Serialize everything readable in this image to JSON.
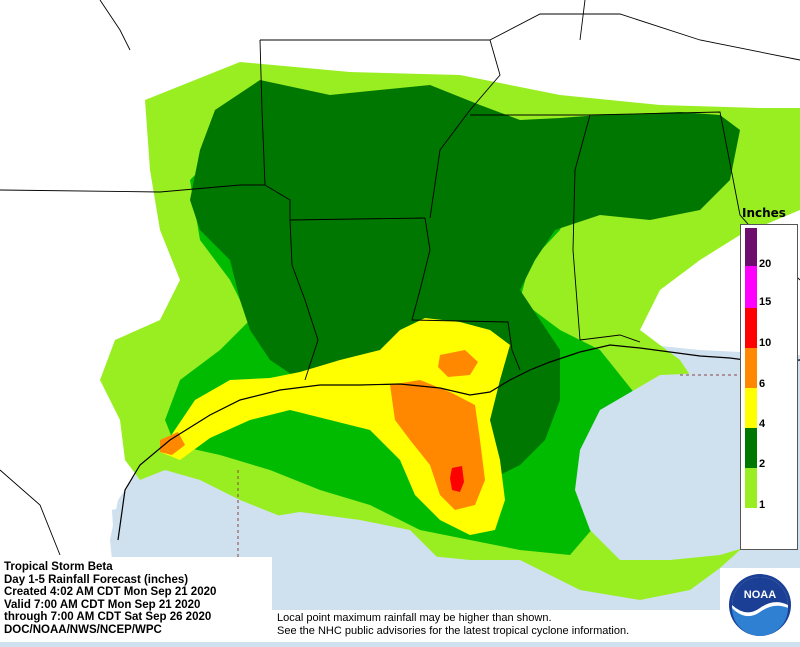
{
  "legend": {
    "title": "Inches",
    "items": [
      {
        "label": "20",
        "color": "#6d0d6d"
      },
      {
        "label": "15",
        "color": "#ff00ff"
      },
      {
        "label": "10",
        "color": "#ff0000"
      },
      {
        "label": "6",
        "color": "#ff8800"
      },
      {
        "label": "4",
        "color": "#ffff00"
      },
      {
        "label": "2",
        "color": "#007700"
      },
      {
        "label": "1",
        "color": "#00bb00"
      },
      {
        "label": "",
        "color": "#99ee22"
      }
    ],
    "top_color": "#6d0d6d"
  },
  "info": {
    "line1": "Tropical Storm Beta",
    "line2": "Day 1-5 Rainfall Forecast (inches)",
    "line3": "Created 4:02 AM CDT Mon Sep 21 2020",
    "line4": "Valid 7:00 AM CDT Mon Sep 21 2020",
    "line5": "through 7:00 AM CDT Sat Sep 26 2020",
    "line6": "DOC/NOAA/NWS/NCEP/WPC"
  },
  "note": {
    "line1": "Local point maximum rainfall may be higher than shown.",
    "line2": "See the NHC public advisories for the latest tropical cyclone information."
  },
  "logo": {
    "text": "NOAA"
  },
  "colors": {
    "water": "#cfe0ef",
    "land": "#ffffff",
    "light_green": "#99ee22",
    "green": "#00bb00",
    "dark_green": "#007700",
    "yellow": "#ffff00",
    "orange": "#ff8800",
    "red": "#ff0000"
  }
}
